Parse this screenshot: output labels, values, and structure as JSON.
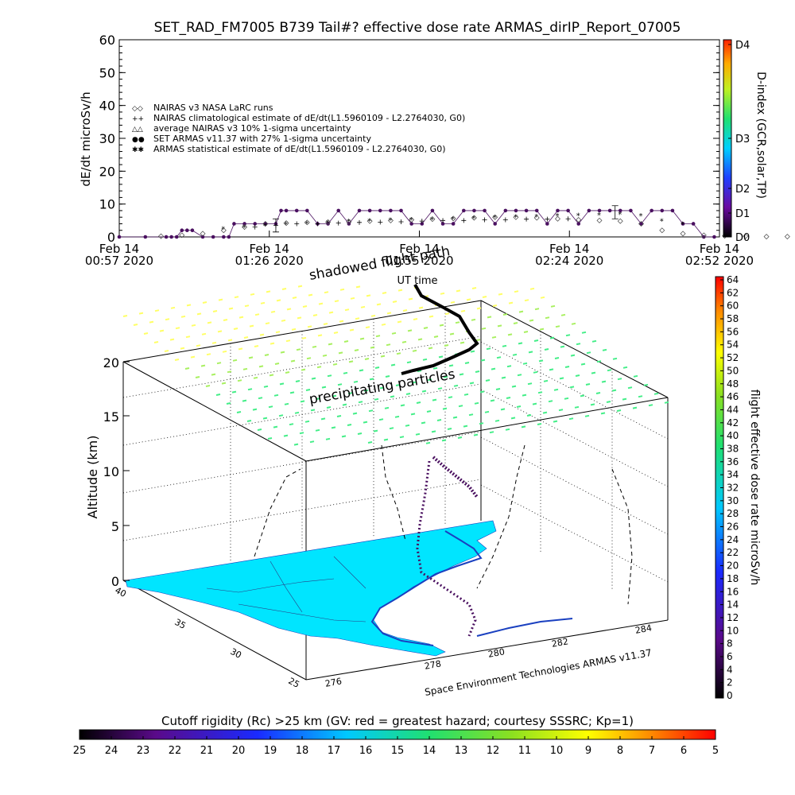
{
  "chart_data": [
    {
      "type": "scatter",
      "title": "SET_RAD_FM7005  B739 Tail#? effective dose rate ARMAS_dirIP_Report_07005",
      "ylabel": "dE/dt microSv/h",
      "xlabel": "UT time",
      "ylim": [
        0,
        60
      ],
      "yticks": [
        "0",
        "10",
        "20",
        "30",
        "40",
        "50",
        "60"
      ],
      "xticks": [
        {
          "l1": "Feb 14",
          "l2": "00:57 2020"
        },
        {
          "l1": "Feb 14",
          "l2": "01:26 2020"
        },
        {
          "l1": "Feb 14",
          "l2": "01:55 2020"
        },
        {
          "l1": "Feb 14",
          "l2": "02:24 2020"
        },
        {
          "l1": "Feb 14",
          "l2": "02:52 2020"
        }
      ],
      "legend_placement": "upper-left",
      "legend": [
        {
          "sym": "◇◇",
          "text": "NAIRAS v3 NASA LaRC runs"
        },
        {
          "sym": "++",
          "text": "NAIRAS climatological estimate of dE/dt(L1.5960109 - L2.2764030, G0)"
        },
        {
          "sym": "△△",
          "text": "average NAIRAS v3 10% 1-sigma uncertainty"
        },
        {
          "sym": "●●",
          "text": "SET ARMAS v11.37 with 27% 1-sigma uncertainty"
        },
        {
          "sym": "✱✱",
          "text": "ARMAS statistical estimate of dE/dt(L1.5960109 - L2.2764030, G0)"
        }
      ],
      "right_axis_label": "D-index (GCR,solar,TP)",
      "right_axis_ticks": [
        "D0",
        "D1",
        "D2",
        "D3",
        "D4"
      ],
      "series": [
        {
          "name": "SET ARMAS v11.37 with 27% 1-sigma uncertainty",
          "x_minutes": [
            0,
            5,
            9,
            10,
            11,
            12,
            13,
            14,
            16,
            18,
            20,
            21,
            22,
            24,
            26,
            28,
            30,
            31,
            32,
            34,
            36,
            38,
            40,
            42,
            44,
            46,
            48,
            50,
            52,
            54,
            56,
            58,
            60,
            62,
            64,
            66,
            68,
            70,
            72,
            74,
            76,
            78,
            80,
            82,
            84,
            86,
            88,
            90,
            92,
            94,
            96,
            98,
            100,
            102,
            104,
            106,
            108,
            110,
            112,
            114
          ],
          "y": [
            0,
            0,
            0,
            0,
            0,
            2,
            2,
            2,
            0,
            0,
            0,
            0,
            4,
            4,
            4,
            4,
            4,
            8,
            8,
            8,
            8,
            4,
            4,
            8,
            4,
            8,
            8,
            8,
            8,
            8,
            4,
            4,
            8,
            4,
            4,
            8,
            8,
            8,
            4,
            8,
            8,
            8,
            8,
            4,
            8,
            8,
            4,
            8,
            8,
            8,
            8,
            8,
            4,
            8,
            8,
            8,
            4,
            4,
            0,
            0
          ]
        },
        {
          "name": "ARMAS statistical estimate of dE/dt(L1.5960109 - L2.2764030, G0)",
          "x_minutes": [
            20,
            24,
            28,
            32,
            36,
            40,
            44,
            48,
            52,
            56,
            60,
            64,
            68,
            72,
            76,
            80,
            84,
            88,
            92,
            96,
            100,
            104,
            108
          ],
          "y": [
            2.5,
            3,
            3.5,
            4,
            4.2,
            4.5,
            4.8,
            5,
            5.2,
            5.3,
            5.5,
            5.6,
            5.8,
            6,
            6.2,
            6.3,
            6.5,
            6.6,
            6.8,
            7,
            6.5,
            5,
            4
          ]
        },
        {
          "name": "NAIRAS v3 NASA LaRC runs",
          "x_minutes": [
            8,
            12,
            16,
            20,
            24,
            28,
            32,
            36,
            40,
            44,
            48,
            52,
            56,
            60,
            64,
            68,
            72,
            76,
            80,
            84,
            88,
            92,
            96,
            100,
            104,
            108,
            112,
            116,
            120,
            124,
            128,
            132
          ],
          "y": [
            0.2,
            0.5,
            1,
            2,
            3,
            4,
            4.2,
            4.4,
            4.5,
            4.6,
            4.8,
            5,
            5.2,
            5.4,
            5.6,
            5.8,
            6,
            6,
            5.8,
            5.5,
            5.2,
            5,
            4.8,
            4,
            2,
            1,
            0.5,
            0.3,
            0.2,
            0.1,
            0.1,
            0
          ]
        },
        {
          "name": "NAIRAS climatological estimate of dE/dt(L1.5960109 - L2.2764030, G0)",
          "x_minutes": [
            26,
            30,
            34,
            38,
            42,
            46,
            50,
            54,
            58,
            62,
            66,
            70,
            74,
            78,
            82,
            86
          ],
          "y": [
            3,
            3.5,
            4,
            4,
            4.2,
            4.4,
            4.5,
            4.6,
            4.8,
            5,
            5,
            5.2,
            5.2,
            5.4,
            5.4,
            5.5
          ]
        }
      ]
    },
    {
      "type": "scatter",
      "title": "",
      "ylabel": "Altitude (km)",
      "zticks": [
        "0",
        "5",
        "10",
        "15",
        "20"
      ],
      "lon_ticks": [
        "276",
        "278",
        "280",
        "282",
        "284"
      ],
      "lat_ticks": [
        "40",
        "35",
        "30",
        "25"
      ],
      "annotations": [
        "shadowed flight path",
        "precipitating particles",
        "Space Environment Technologies ARMAS v11.37"
      ],
      "colorbar_label": "flight effective dose rate microSv/h",
      "colorbar_ticks": [
        "0",
        "2",
        "4",
        "6",
        "8",
        "10",
        "12",
        "14",
        "16",
        "18",
        "20",
        "22",
        "24",
        "26",
        "28",
        "30",
        "32",
        "34",
        "36",
        "38",
        "40",
        "42",
        "44",
        "46",
        "48",
        "50",
        "52",
        "54",
        "56",
        "58",
        "60",
        "62",
        "64"
      ]
    }
  ],
  "bottom_colorbar": {
    "title": "Cutoff rigidity (Rc) >25 km (GV: red = greatest hazard; courtesy SSSRC; Kp=1)",
    "ticks": [
      "25",
      "24",
      "23",
      "22",
      "21",
      "20",
      "19",
      "18",
      "17",
      "16",
      "15",
      "14",
      "13",
      "12",
      "11",
      "10",
      "9",
      "8",
      "7",
      "6",
      "5"
    ]
  },
  "colors": {
    "armas": "#4a1060",
    "land": "#00e5ff",
    "precip_upper": "#ffff66",
    "precip_lower": "#44ee88"
  }
}
